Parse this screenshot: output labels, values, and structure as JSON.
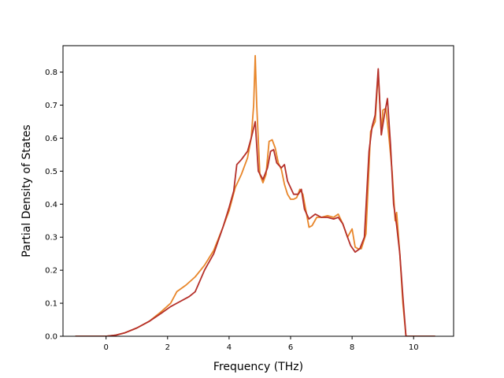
{
  "chart_data": {
    "type": "line",
    "title": "",
    "xlabel": "Frequency (THz)",
    "ylabel": "Partial Density of States",
    "xlim": [
      -1.4,
      11.3
    ],
    "ylim": [
      0,
      0.88
    ],
    "xticks": [
      0,
      2,
      4,
      6,
      8,
      10
    ],
    "yticks": [
      0.0,
      0.1,
      0.2,
      0.3,
      0.4,
      0.5,
      0.6,
      0.7,
      0.8
    ],
    "xtick_labels": [
      "0",
      "2",
      "4",
      "6",
      "8",
      "10"
    ],
    "ytick_labels": [
      "0.0",
      "0.1",
      "0.2",
      "0.3",
      "0.4",
      "0.5",
      "0.6",
      "0.7",
      "0.8"
    ],
    "grid": false,
    "legend": "none",
    "series": [
      {
        "color": "#e8862a",
        "points": [
          [
            -1.0,
            0.0
          ],
          [
            0.0,
            0.0
          ],
          [
            0.3,
            0.003
          ],
          [
            0.6,
            0.01
          ],
          [
            1.0,
            0.025
          ],
          [
            1.4,
            0.045
          ],
          [
            1.8,
            0.075
          ],
          [
            2.1,
            0.1
          ],
          [
            2.3,
            0.135
          ],
          [
            2.6,
            0.155
          ],
          [
            2.9,
            0.18
          ],
          [
            3.2,
            0.215
          ],
          [
            3.5,
            0.26
          ],
          [
            3.8,
            0.33
          ],
          [
            4.0,
            0.38
          ],
          [
            4.2,
            0.45
          ],
          [
            4.4,
            0.49
          ],
          [
            4.6,
            0.54
          ],
          [
            4.72,
            0.6
          ],
          [
            4.8,
            0.7
          ],
          [
            4.85,
            0.85
          ],
          [
            4.9,
            0.7
          ],
          [
            5.0,
            0.49
          ],
          [
            5.1,
            0.465
          ],
          [
            5.2,
            0.49
          ],
          [
            5.3,
            0.59
          ],
          [
            5.4,
            0.595
          ],
          [
            5.5,
            0.57
          ],
          [
            5.6,
            0.525
          ],
          [
            5.7,
            0.505
          ],
          [
            5.8,
            0.46
          ],
          [
            5.9,
            0.43
          ],
          [
            6.0,
            0.415
          ],
          [
            6.1,
            0.415
          ],
          [
            6.2,
            0.42
          ],
          [
            6.3,
            0.445
          ],
          [
            6.4,
            0.43
          ],
          [
            6.5,
            0.38
          ],
          [
            6.6,
            0.33
          ],
          [
            6.7,
            0.335
          ],
          [
            6.85,
            0.36
          ],
          [
            7.0,
            0.36
          ],
          [
            7.2,
            0.365
          ],
          [
            7.4,
            0.36
          ],
          [
            7.55,
            0.37
          ],
          [
            7.7,
            0.34
          ],
          [
            7.85,
            0.3
          ],
          [
            8.0,
            0.325
          ],
          [
            8.1,
            0.27
          ],
          [
            8.2,
            0.265
          ],
          [
            8.3,
            0.265
          ],
          [
            8.45,
            0.31
          ],
          [
            8.6,
            0.62
          ],
          [
            8.75,
            0.65
          ],
          [
            8.85,
            0.8
          ],
          [
            8.95,
            0.61
          ],
          [
            9.0,
            0.685
          ],
          [
            9.1,
            0.69
          ],
          [
            9.2,
            0.6
          ],
          [
            9.3,
            0.5
          ],
          [
            9.4,
            0.35
          ],
          [
            9.45,
            0.375
          ],
          [
            9.55,
            0.25
          ],
          [
            9.65,
            0.1
          ],
          [
            9.75,
            0.0
          ],
          [
            10.7,
            0.0
          ]
        ]
      },
      {
        "color": "#b5302a",
        "points": [
          [
            -1.0,
            0.0
          ],
          [
            0.0,
            0.0
          ],
          [
            0.3,
            0.003
          ],
          [
            0.6,
            0.01
          ],
          [
            1.0,
            0.025
          ],
          [
            1.4,
            0.045
          ],
          [
            1.8,
            0.07
          ],
          [
            2.1,
            0.09
          ],
          [
            2.4,
            0.105
          ],
          [
            2.7,
            0.12
          ],
          [
            2.9,
            0.135
          ],
          [
            3.2,
            0.2
          ],
          [
            3.5,
            0.25
          ],
          [
            3.8,
            0.33
          ],
          [
            4.0,
            0.39
          ],
          [
            4.15,
            0.44
          ],
          [
            4.25,
            0.52
          ],
          [
            4.4,
            0.535
          ],
          [
            4.6,
            0.56
          ],
          [
            4.72,
            0.6
          ],
          [
            4.85,
            0.65
          ],
          [
            4.95,
            0.5
          ],
          [
            5.1,
            0.475
          ],
          [
            5.25,
            0.51
          ],
          [
            5.35,
            0.56
          ],
          [
            5.45,
            0.565
          ],
          [
            5.55,
            0.525
          ],
          [
            5.7,
            0.51
          ],
          [
            5.8,
            0.52
          ],
          [
            5.9,
            0.47
          ],
          [
            6.1,
            0.43
          ],
          [
            6.25,
            0.43
          ],
          [
            6.35,
            0.445
          ],
          [
            6.45,
            0.385
          ],
          [
            6.6,
            0.355
          ],
          [
            6.8,
            0.37
          ],
          [
            7.0,
            0.36
          ],
          [
            7.2,
            0.36
          ],
          [
            7.4,
            0.355
          ],
          [
            7.55,
            0.36
          ],
          [
            7.7,
            0.34
          ],
          [
            7.85,
            0.3
          ],
          [
            7.95,
            0.275
          ],
          [
            8.1,
            0.255
          ],
          [
            8.25,
            0.265
          ],
          [
            8.4,
            0.3
          ],
          [
            8.55,
            0.56
          ],
          [
            8.65,
            0.635
          ],
          [
            8.75,
            0.67
          ],
          [
            8.85,
            0.81
          ],
          [
            8.95,
            0.61
          ],
          [
            9.05,
            0.67
          ],
          [
            9.15,
            0.72
          ],
          [
            9.25,
            0.58
          ],
          [
            9.35,
            0.4
          ],
          [
            9.45,
            0.335
          ],
          [
            9.55,
            0.25
          ],
          [
            9.65,
            0.12
          ],
          [
            9.75,
            0.0
          ],
          [
            10.7,
            0.0
          ]
        ]
      }
    ]
  }
}
